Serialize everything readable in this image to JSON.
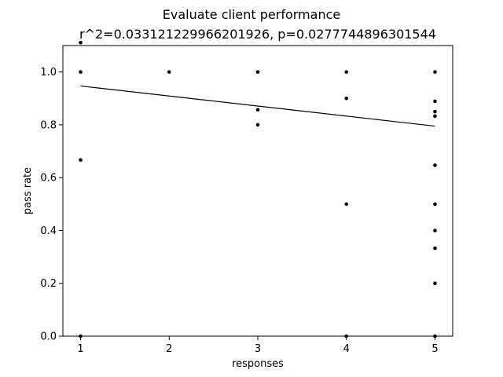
{
  "chart_data": {
    "type": "scatter",
    "title": "Evaluate client performance",
    "subtitle": "r^2=0.033121229966201926, p=0.0277744896301544",
    "xlabel": "responses",
    "ylabel": "pass rate",
    "xlim": [
      0.8,
      5.2
    ],
    "ylim": [
      0.0,
      1.1
    ],
    "xticks": [
      1,
      2,
      3,
      4,
      5
    ],
    "xtick_labels": [
      "1",
      "2",
      "3",
      "4",
      "5"
    ],
    "yticks": [
      0.0,
      0.2,
      0.4,
      0.6,
      0.8,
      1.0
    ],
    "ytick_labels": [
      "0.0",
      "0.2",
      "0.4",
      "0.6",
      "0.8",
      "1.0"
    ],
    "grid": false,
    "series": [
      {
        "points": [
          [
            1,
            1.111
          ],
          [
            1,
            1.0
          ],
          [
            1,
            0.667
          ],
          [
            1,
            0.0
          ],
          [
            2,
            1.0
          ],
          [
            3,
            1.0
          ],
          [
            3,
            0.857
          ],
          [
            3,
            0.8
          ],
          [
            4,
            1.0
          ],
          [
            4,
            0.9
          ],
          [
            4,
            0.5
          ],
          [
            4,
            0.0
          ],
          [
            5,
            1.0
          ],
          [
            5,
            0.889
          ],
          [
            5,
            0.85
          ],
          [
            5,
            0.833
          ],
          [
            5,
            0.647
          ],
          [
            5,
            0.5
          ],
          [
            5,
            0.4
          ],
          [
            5,
            0.333
          ],
          [
            5,
            0.2
          ],
          [
            5,
            0.0
          ]
        ],
        "color": "#000000"
      }
    ],
    "trendline": {
      "x": [
        1,
        5
      ],
      "y": [
        0.947,
        0.795
      ],
      "color": "#000000"
    }
  }
}
